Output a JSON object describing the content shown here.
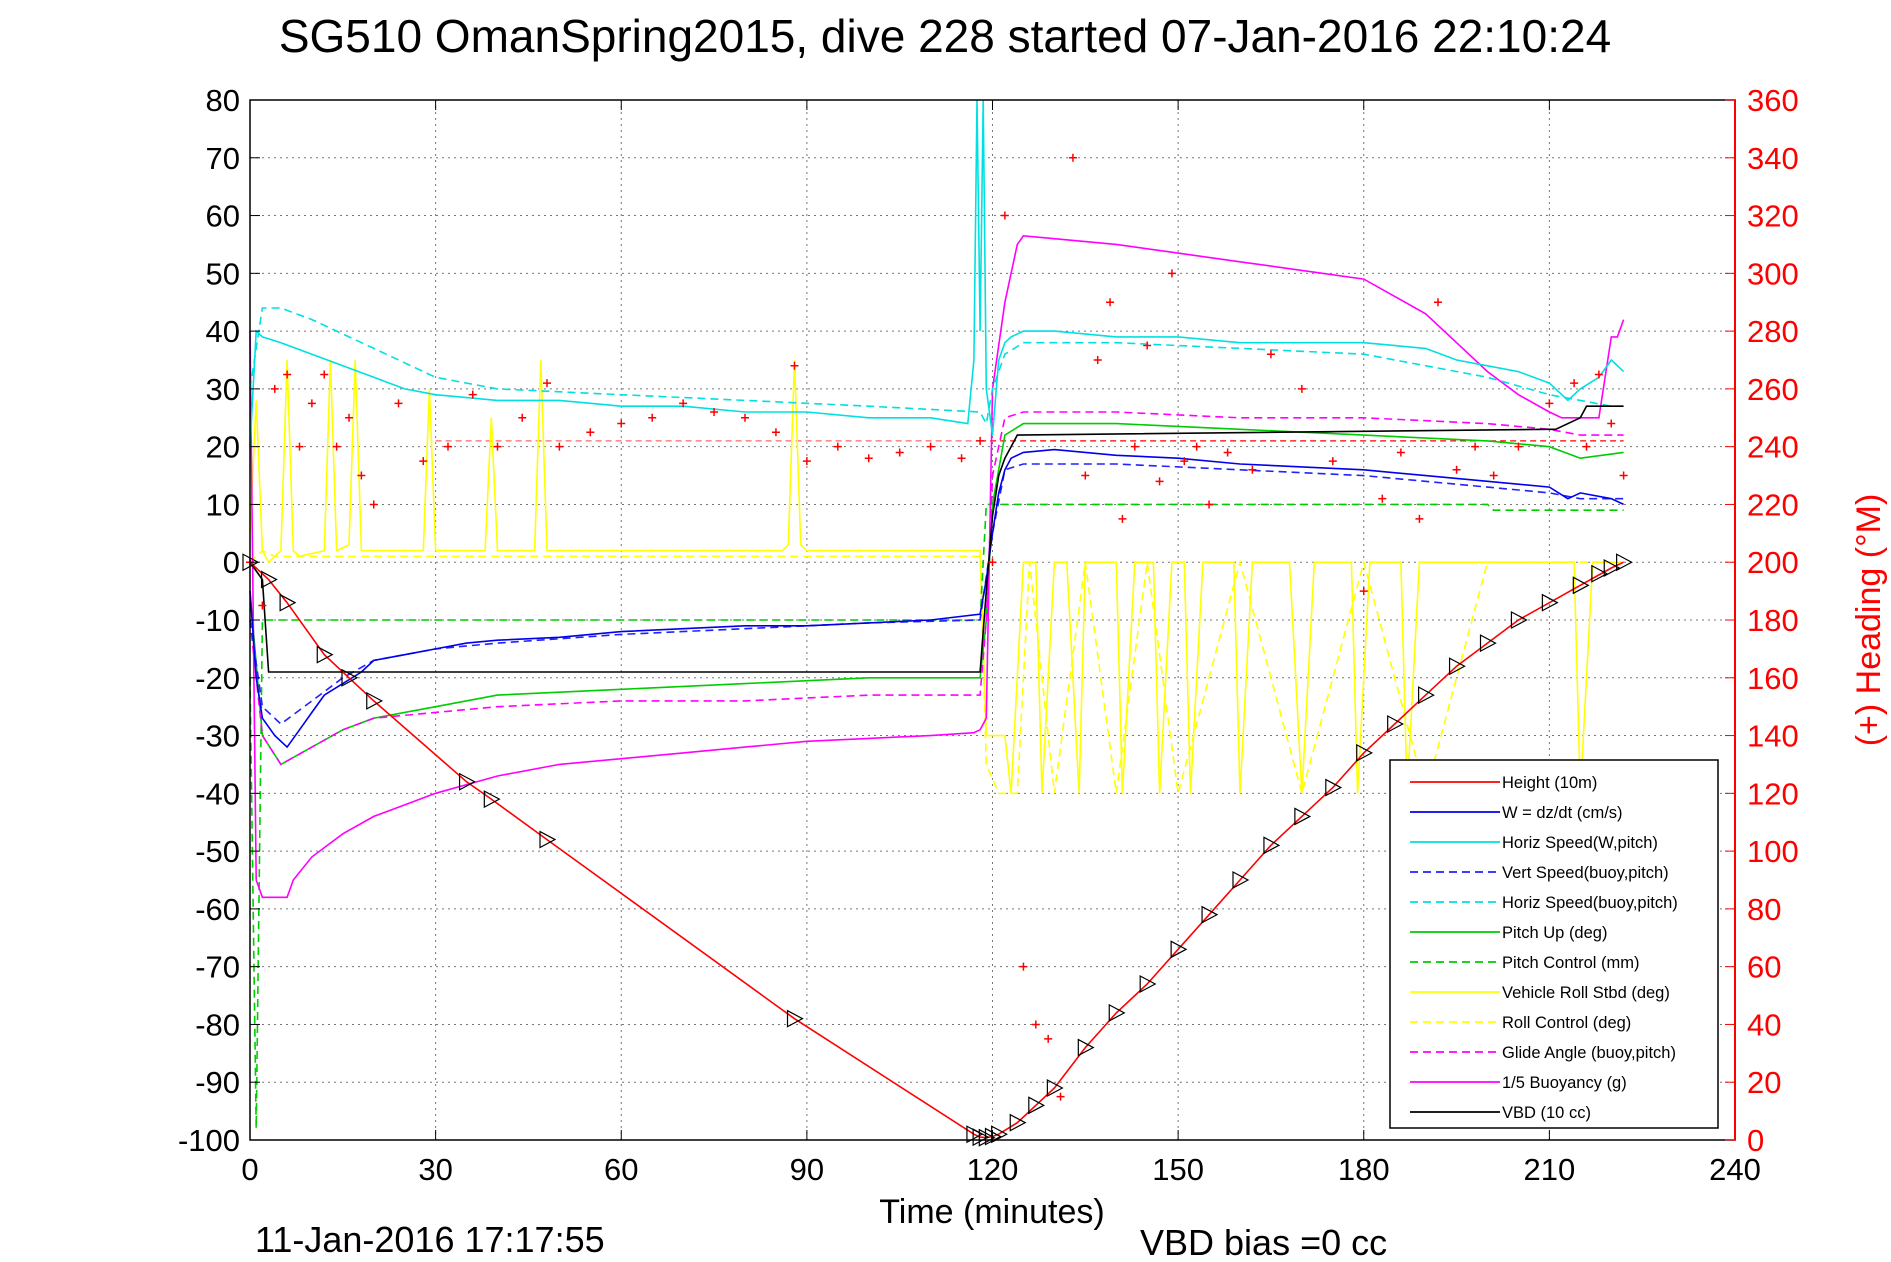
{
  "title": "SG510 OmanSpring2015, dive 228 started 07-Jan-2016 22:10:24",
  "footer_timestamp": "11-Jan-2016 17:17:55",
  "footer_vbd_bias": "VBD bias =0 cc",
  "colors": {
    "height": "#ff0000",
    "w": "#0000ee",
    "horiz": "#00e0e0",
    "vert_buoy": "#2222ff",
    "pitch": "#00cc00",
    "roll": "#ffff00",
    "glide": "#ff00ff",
    "buoy": "#ff00ff",
    "vbd": "#000000",
    "heading": "#ff0000"
  },
  "chart_data": {
    "type": "line",
    "title": "SG510 OmanSpring2015, dive 228 started 07-Jan-2016 22:10:24",
    "xlabel": "Time (minutes)",
    "ylabel": "",
    "y2label": "(+) Heading (°M)",
    "xlim": [
      0,
      240
    ],
    "ylim": [
      -100,
      80
    ],
    "y2lim": [
      0,
      360
    ],
    "grid": true,
    "legend_position": "bottom-right",
    "x_ticks": [
      "0",
      "30",
      "60",
      "90",
      "120",
      "150",
      "180",
      "210",
      "240"
    ],
    "y_ticks": [
      "80",
      "70",
      "60",
      "50",
      "40",
      "30",
      "20",
      "10",
      "0",
      "-10",
      "-20",
      "-30",
      "-40",
      "-50",
      "-60",
      "-70",
      "-80",
      "-90",
      "-100"
    ],
    "y2_ticks": [
      "360",
      "340",
      "320",
      "300",
      "280",
      "260",
      "240",
      "220",
      "200",
      "180",
      "160",
      "140",
      "120",
      "100",
      "80",
      "60",
      "40",
      "20",
      "0"
    ],
    "series": [
      {
        "name": "Height (10m)",
        "key": "height",
        "style": "solid",
        "marker": "none",
        "x": [
          0,
          3,
          6,
          12,
          16,
          20,
          35,
          39,
          48,
          88,
          117,
          118,
          119,
          120,
          121,
          124,
          130,
          135,
          140,
          145,
          150,
          155,
          160,
          165,
          170,
          175,
          180,
          185,
          190,
          195,
          200,
          205,
          210,
          215,
          220,
          222
        ],
        "y": [
          0,
          -3,
          -7,
          -16,
          -20,
          -24,
          -38,
          -41,
          -48,
          -79,
          -99,
          -99.5,
          -99.6,
          -99.4,
          -99,
          -97,
          -91,
          -84,
          -78,
          -73,
          -67,
          -61,
          -55,
          -49,
          -44,
          -39,
          -33,
          -28,
          -23,
          -18,
          -14,
          -10,
          -7,
          -4,
          -1,
          0
        ]
      },
      {
        "name": "W = dz/dt (cm/s)",
        "key": "w",
        "style": "solid",
        "marker": "none",
        "x": [
          0,
          1,
          2,
          4,
          6,
          8,
          10,
          12,
          15,
          18,
          20,
          25,
          30,
          35,
          40,
          50,
          60,
          70,
          80,
          90,
          100,
          110,
          118,
          119,
          120,
          121,
          122,
          123,
          125,
          130,
          135,
          140,
          150,
          160,
          170,
          180,
          190,
          200,
          210,
          213,
          215,
          220,
          222
        ],
        "y": [
          -5,
          -20,
          -27,
          -30,
          -32,
          -29,
          -26,
          -23,
          -21,
          -19,
          -17,
          -16,
          -15,
          -14,
          -13.5,
          -13,
          -12,
          -11.5,
          -11,
          -11,
          -10.5,
          -10,
          -9,
          -3,
          5,
          12,
          16,
          18,
          19,
          19.5,
          19,
          18.5,
          18,
          17,
          16.5,
          16,
          15,
          14,
          13,
          11,
          12,
          11,
          10
        ]
      },
      {
        "name": "Horiz Speed(W,pitch)",
        "key": "horiz",
        "style": "solid",
        "marker": "none",
        "x": [
          0,
          1,
          2,
          5,
          10,
          15,
          20,
          25,
          30,
          40,
          50,
          60,
          70,
          80,
          90,
          100,
          110,
          116,
          117,
          117.5,
          118,
          118.5,
          119,
          120,
          121,
          122,
          123,
          125,
          130,
          140,
          150,
          160,
          170,
          180,
          190,
          195,
          200,
          205,
          210,
          213,
          215,
          218,
          220,
          222
        ],
        "y": [
          20,
          40,
          39,
          38,
          36,
          34,
          32,
          30,
          29,
          28,
          28,
          27,
          27,
          26,
          26,
          25,
          25,
          24,
          35,
          80,
          40,
          80,
          30,
          22,
          35,
          38,
          39,
          40,
          40,
          39,
          39,
          38,
          38,
          38,
          37,
          35,
          34,
          33,
          31,
          28,
          30,
          32,
          35,
          33
        ]
      },
      {
        "name": "Vert Speed(buoy,pitch)",
        "key": "vert_buoy",
        "style": "dashed",
        "marker": "none",
        "x": [
          0,
          2,
          5,
          10,
          15,
          20,
          30,
          40,
          60,
          80,
          100,
          118,
          120,
          122,
          125,
          140,
          160,
          180,
          200,
          210,
          215,
          222
        ],
        "y": [
          -10,
          -25,
          -28,
          -24,
          -20,
          -17,
          -15,
          -14,
          -12.5,
          -11.5,
          -10.5,
          -10,
          5,
          16,
          17,
          17,
          16,
          15,
          13,
          12,
          11,
          11
        ]
      },
      {
        "name": "Horiz Speed(buoy,pitch)",
        "key": "horiz_buoy",
        "style": "dashed",
        "marker": "none",
        "x": [
          0,
          2,
          5,
          10,
          20,
          30,
          40,
          60,
          80,
          100,
          118,
          119,
          120,
          122,
          125,
          140,
          160,
          180,
          200,
          210,
          220,
          222
        ],
        "y": [
          30,
          44,
          44,
          42,
          37,
          32,
          30,
          29,
          28,
          27,
          26,
          24,
          30,
          36,
          38,
          38,
          37,
          36,
          32,
          29,
          27,
          27
        ]
      },
      {
        "name": "Pitch Up (deg)",
        "key": "pitch",
        "style": "solid",
        "marker": "none",
        "x": [
          0,
          2,
          5,
          10,
          15,
          20,
          30,
          40,
          60,
          80,
          100,
          118,
          119,
          120,
          122,
          125,
          140,
          160,
          180,
          200,
          210,
          215,
          222
        ],
        "y": [
          -5,
          -30,
          -35,
          -32,
          -29,
          -27,
          -25,
          -23,
          -22,
          -21,
          -20,
          -20,
          -10,
          10,
          22,
          24,
          24,
          23,
          22,
          21,
          20,
          18,
          19
        ]
      },
      {
        "name": "Pitch Control (mm)",
        "key": "pitch_ctrl",
        "style": "dashed",
        "marker": "none",
        "x": [
          0,
          1,
          2,
          3,
          118,
          119,
          120,
          200,
          201,
          222
        ],
        "y": [
          -20,
          -98,
          -10,
          -10,
          -10,
          10,
          10,
          10,
          9,
          9
        ]
      },
      {
        "name": "Vehicle Roll Stbd (deg)",
        "key": "roll",
        "style": "solid",
        "marker": "none",
        "x": [
          0,
          1,
          2,
          3,
          5,
          6,
          7,
          8,
          12,
          13,
          14,
          16,
          17,
          18,
          20,
          22,
          28,
          29,
          30,
          35,
          38,
          39,
          40,
          46,
          47,
          48,
          50,
          86,
          87,
          88,
          89,
          90,
          117,
          118,
          119,
          121,
          122,
          123,
          125,
          127,
          128,
          130,
          131,
          132,
          134,
          135,
          137,
          140,
          141,
          143,
          146,
          147,
          149,
          151,
          152,
          154,
          159,
          160,
          162,
          168,
          170,
          172,
          178,
          179,
          181,
          186,
          187,
          189,
          195,
          197,
          199,
          205,
          210,
          214,
          215,
          217,
          222
        ],
        "y": [
          5,
          28,
          2,
          0,
          2,
          35,
          2,
          1,
          2,
          35,
          2,
          3,
          35,
          2,
          2,
          2,
          2,
          30,
          2,
          2,
          2,
          25,
          2,
          2,
          35,
          2,
          2,
          2,
          3,
          35,
          3,
          2,
          2,
          2,
          -30,
          -30,
          -30,
          -40,
          0,
          0,
          -40,
          0,
          0,
          0,
          -40,
          0,
          0,
          0,
          -40,
          0,
          0,
          -40,
          0,
          0,
          -40,
          0,
          0,
          -40,
          0,
          0,
          -40,
          0,
          0,
          -40,
          0,
          0,
          -40,
          0,
          0,
          0,
          0,
          0,
          0,
          0,
          -40,
          0,
          0
        ]
      },
      {
        "name": "Roll Control (deg)",
        "key": "roll_ctrl",
        "style": "dashed",
        "marker": "none",
        "x": [
          0,
          2,
          4,
          118,
          119,
          121,
          124,
          126,
          130,
          135,
          140,
          145,
          150,
          160,
          170,
          180,
          190,
          200,
          210,
          222
        ],
        "y": [
          0,
          2,
          1,
          1,
          -35,
          -40,
          -40,
          0,
          -40,
          0,
          -40,
          0,
          -40,
          0,
          -40,
          0,
          -40,
          0,
          0,
          0
        ]
      },
      {
        "name": "Glide Angle (buoy,pitch)",
        "key": "glide",
        "style": "dashed",
        "marker": "none",
        "x": [
          0,
          2,
          5,
          10,
          15,
          20,
          30,
          40,
          60,
          80,
          100,
          118,
          119,
          120,
          122,
          125,
          140,
          160,
          180,
          200,
          210,
          215,
          222
        ],
        "y": [
          -10,
          -30,
          -35,
          -32,
          -29,
          -27,
          -26,
          -25,
          -24,
          -24,
          -23,
          -23,
          -10,
          15,
          25,
          26,
          26,
          25,
          25,
          24,
          23,
          22,
          22
        ]
      },
      {
        "name": "1/5 Buoyancy (g)",
        "key": "buoy",
        "style": "solid",
        "marker": "none",
        "x": [
          0,
          1,
          2,
          6,
          7,
          10,
          15,
          20,
          25,
          30,
          40,
          50,
          60,
          70,
          80,
          90,
          100,
          110,
          117,
          118,
          119,
          120,
          122,
          124,
          125,
          130,
          140,
          150,
          160,
          170,
          180,
          185,
          190,
          195,
          200,
          205,
          210,
          212,
          218,
          220,
          221,
          222
        ],
        "y": [
          40,
          -55,
          -58,
          -58,
          -55,
          -51,
          -47,
          -44,
          -42,
          -40,
          -37,
          -35,
          -34,
          -33,
          -32,
          -31,
          -30.5,
          -30,
          -29.5,
          -29,
          -27,
          30,
          45,
          55,
          56.5,
          56,
          55,
          53.5,
          52,
          50.5,
          49,
          46,
          43,
          38,
          33,
          29,
          26,
          25,
          25,
          39,
          39,
          42
        ]
      },
      {
        "name": "VBD (10 cc)",
        "key": "vbd",
        "style": "solid",
        "marker": "none",
        "x": [
          0,
          2,
          3,
          117,
          118,
          119,
          120,
          121,
          122,
          123,
          124,
          210,
          211,
          215,
          216,
          222
        ],
        "y": [
          0,
          -3,
          -19,
          -19,
          -19,
          -5,
          8,
          15,
          18,
          20,
          22,
          23,
          23,
          25,
          27,
          27
        ]
      },
      {
        "name": "(+) Heading",
        "key": "heading",
        "axis": "right",
        "style": "none",
        "marker": "plus",
        "x": [
          0,
          2,
          4,
          6,
          8,
          10,
          12,
          14,
          16,
          18,
          20,
          24,
          28,
          32,
          36,
          40,
          44,
          48,
          50,
          55,
          60,
          65,
          70,
          75,
          80,
          85,
          88,
          90,
          95,
          100,
          105,
          110,
          115,
          118,
          120,
          122,
          125,
          127,
          129,
          131,
          133,
          135,
          137,
          139,
          141,
          143,
          145,
          147,
          149,
          151,
          153,
          155,
          158,
          162,
          165,
          170,
          175,
          180,
          183,
          186,
          189,
          192,
          195,
          198,
          201,
          205,
          210,
          214,
          216,
          218,
          220,
          222
        ],
        "y": [
          200,
          185,
          260,
          265,
          240,
          255,
          265,
          240,
          250,
          230,
          220,
          255,
          235,
          240,
          258,
          240,
          250,
          262,
          240,
          245,
          248,
          250,
          255,
          252,
          250,
          245,
          268,
          235,
          240,
          236,
          238,
          240,
          236,
          242,
          200,
          320,
          60,
          40,
          35,
          15,
          340,
          230,
          270,
          290,
          215,
          240,
          275,
          228,
          300,
          235,
          240,
          220,
          238,
          232,
          272,
          260,
          235,
          190,
          222,
          238,
          215,
          290,
          232,
          240,
          230,
          240,
          255,
          262,
          240,
          265,
          248,
          230
        ]
      },
      {
        "name": "Height markers",
        "key": "markers",
        "style": "none",
        "marker": "triangle",
        "x": [
          0,
          3,
          6,
          12,
          16,
          20,
          35,
          39,
          48,
          88,
          117,
          118,
          119,
          120,
          121,
          124,
          127,
          130,
          135,
          140,
          145,
          150,
          155,
          160,
          165,
          170,
          175,
          180,
          185,
          190,
          195,
          200,
          205,
          210,
          215,
          218,
          220,
          222
        ],
        "y": [
          0,
          -3,
          -7,
          -16,
          -20,
          -24,
          -38,
          -41,
          -48,
          -79,
          -99,
          -99.5,
          -99.6,
          -99.4,
          -99,
          -97,
          -94,
          -91,
          -84,
          -78,
          -73,
          -67,
          -61,
          -55,
          -49,
          -44,
          -39,
          -33,
          -28,
          -23,
          -18,
          -14,
          -10,
          -7,
          -4,
          -2,
          -1,
          0
        ]
      }
    ],
    "legend": [
      {
        "label": "Height (10m)",
        "key": "height",
        "style": "solid"
      },
      {
        "label": "W = dz/dt (cm/s)",
        "key": "w",
        "style": "solid"
      },
      {
        "label": "Horiz Speed(W,pitch)",
        "key": "horiz",
        "style": "solid"
      },
      {
        "label": "Vert Speed(buoy,pitch)",
        "key": "vert_buoy",
        "style": "dashed"
      },
      {
        "label": "Horiz Speed(buoy,pitch)",
        "key": "horiz_buoy",
        "style": "dashed"
      },
      {
        "label": "Pitch Up (deg)",
        "key": "pitch",
        "style": "solid"
      },
      {
        "label": "Pitch Control (mm)",
        "key": "pitch_ctrl",
        "style": "dashed"
      },
      {
        "label": "Vehicle Roll Stbd (deg)",
        "key": "roll",
        "style": "solid"
      },
      {
        "label": "Roll Control (deg)",
        "key": "roll_ctrl",
        "style": "dashed"
      },
      {
        "label": "Glide Angle (buoy,pitch)",
        "key": "glide",
        "style": "dashed"
      },
      {
        "label": "1/5 Buoyancy (g)",
        "key": "buoy",
        "style": "solid"
      },
      {
        "label": "VBD (10 cc)",
        "key": "vbd",
        "style": "solid"
      }
    ]
  }
}
